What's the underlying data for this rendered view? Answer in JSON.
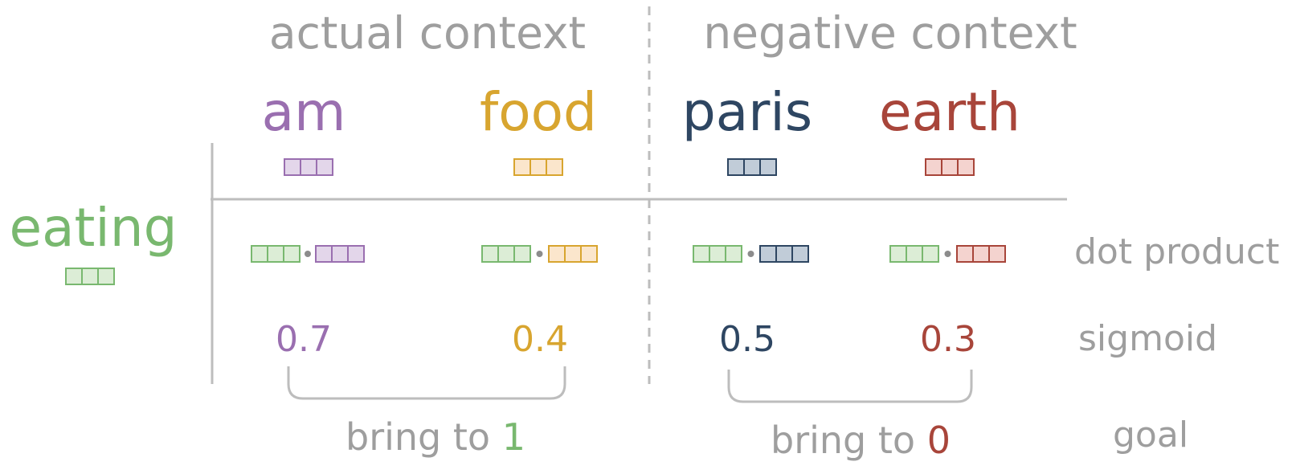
{
  "headers": {
    "actual": "actual context",
    "negative": "negative context"
  },
  "target": {
    "word": "eating",
    "color": "#79b86f",
    "fill": "#dcedd6"
  },
  "contexts": [
    {
      "word": "am",
      "color": "#9a6fb0",
      "fill": "#e3d6ea",
      "score": "0.7"
    },
    {
      "word": "food",
      "color": "#d8a52f",
      "fill": "#fbe6cc",
      "score": "0.4"
    },
    {
      "word": "paris",
      "color": "#2e4662",
      "fill": "#c1ccd8",
      "score": "0.5"
    },
    {
      "word": "earth",
      "color": "#a8453a",
      "fill": "#f4d3cf",
      "score": "0.3"
    }
  ],
  "row_labels": {
    "dot": "dot product",
    "sigmoid": "sigmoid",
    "goal": "goal"
  },
  "goals": [
    {
      "prefix": "bring to ",
      "value": "1",
      "value_color": "#79b86f"
    },
    {
      "prefix": "bring to ",
      "value": "0",
      "value_color": "#a8453a"
    }
  ],
  "colors": {
    "gray_text": "#9e9e9e",
    "line": "#bdbdbd",
    "dot": "#8c8c8c"
  }
}
